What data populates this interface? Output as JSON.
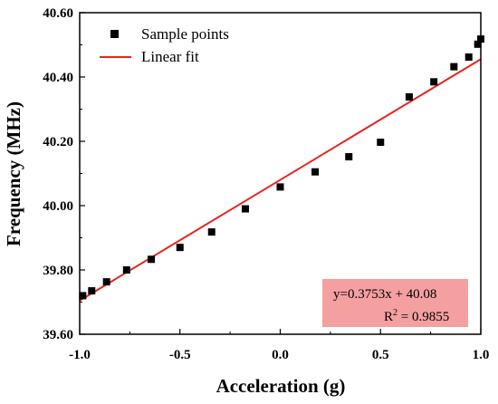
{
  "chart_data": {
    "type": "scatter",
    "xlabel": "Acceleration (g)",
    "ylabel": "Frequency (MHz)",
    "xlim": [
      -1.0,
      1.0
    ],
    "ylim": [
      39.6,
      40.6
    ],
    "x_ticks": [
      "-1.0",
      "-0.5",
      "0.0",
      "0.5",
      "1.0"
    ],
    "y_ticks": [
      "39.60",
      "39.80",
      "40.00",
      "40.20",
      "40.40",
      "40.60"
    ],
    "grid": false,
    "legend_position": "top-left",
    "series": [
      {
        "name": "Sample points",
        "marker": "square",
        "color": "#000000",
        "x": [
          -0.985,
          -0.94,
          -0.866,
          -0.766,
          -0.643,
          -0.5,
          -0.342,
          -0.174,
          0.0,
          0.174,
          0.342,
          0.5,
          0.643,
          0.766,
          0.866,
          0.94,
          0.985,
          1.0
        ],
        "y": [
          39.72,
          39.735,
          39.763,
          39.8,
          39.833,
          39.87,
          39.918,
          39.99,
          40.058,
          40.105,
          40.152,
          40.197,
          40.338,
          40.385,
          40.432,
          40.462,
          40.502,
          40.518
        ]
      },
      {
        "name": "Linear fit",
        "type": "line",
        "color": "#e8231c",
        "x": [
          -1.0,
          1.0
        ],
        "y": [
          39.7047,
          40.4553
        ]
      }
    ],
    "annotation": {
      "equation": "y=0.3753x + 40.08",
      "r2_label": "R",
      "r2_sup": "2",
      "r2_value": " = 0.9855",
      "box_color": "#f4a0a0"
    }
  }
}
